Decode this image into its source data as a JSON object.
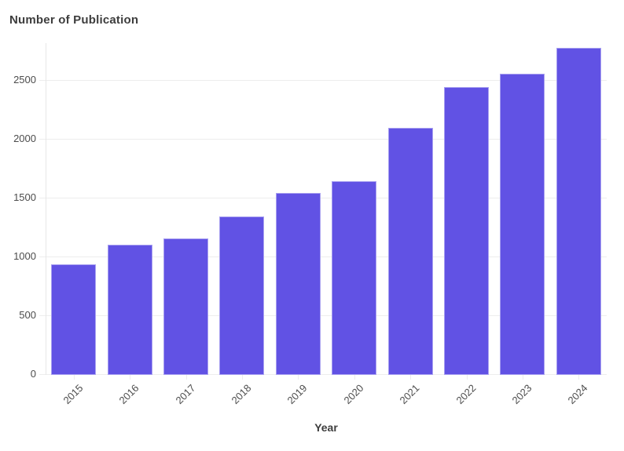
{
  "chart_data": {
    "type": "bar",
    "title": "Number of Publication",
    "xlabel": "Year",
    "ylabel": "",
    "categories": [
      "2015",
      "2016",
      "2017",
      "2018",
      "2019",
      "2020",
      "2021",
      "2022",
      "2023",
      "2024"
    ],
    "values": [
      940,
      1110,
      1160,
      1350,
      1550,
      1650,
      2100,
      2450,
      2560,
      2780
    ],
    "yticks": [
      0,
      500,
      1000,
      1500,
      2000,
      2500
    ],
    "ylim": [
      0,
      2800
    ],
    "grid": "horizontal",
    "legend": "none",
    "x_tick_rotation": -45,
    "colors": {
      "bar_fill": "#6152E4",
      "bar_edge": "rgba(255,255,255,0.45)",
      "gridline": "#ededed",
      "axis_line": "#e7e7e7",
      "title_text": "#3d3d3d",
      "tick_text": "#4c4c4c",
      "background": "#ffffff"
    }
  }
}
